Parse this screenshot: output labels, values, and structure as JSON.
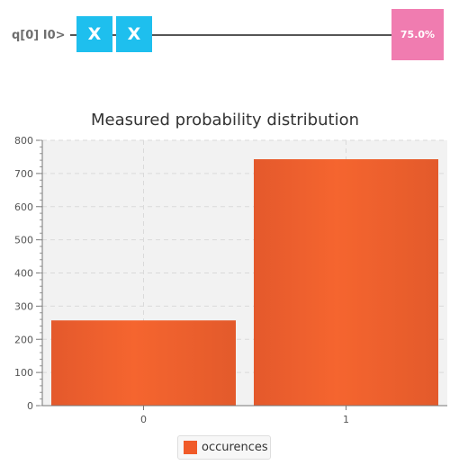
{
  "circuit": {
    "qubit_label": "q[0] I0>",
    "gates": [
      {
        "label": "X",
        "color": "#1ebfee"
      },
      {
        "label": "X",
        "color": "#1ebfee"
      }
    ],
    "measurement": {
      "label": "75.0%",
      "color": "#f07cb0"
    }
  },
  "chart_data": {
    "type": "bar",
    "title": "Measured probability distribution",
    "categories": [
      "0",
      "1"
    ],
    "series": [
      {
        "name": "occurences",
        "values": [
          257,
          743
        ],
        "color": "#f05a28"
      }
    ],
    "ylim": [
      0,
      800
    ],
    "yticks": [
      0,
      100,
      200,
      300,
      400,
      500,
      600,
      700,
      800
    ],
    "xlabel": "",
    "ylabel": "",
    "grid": true,
    "legend": "bottom-center"
  }
}
